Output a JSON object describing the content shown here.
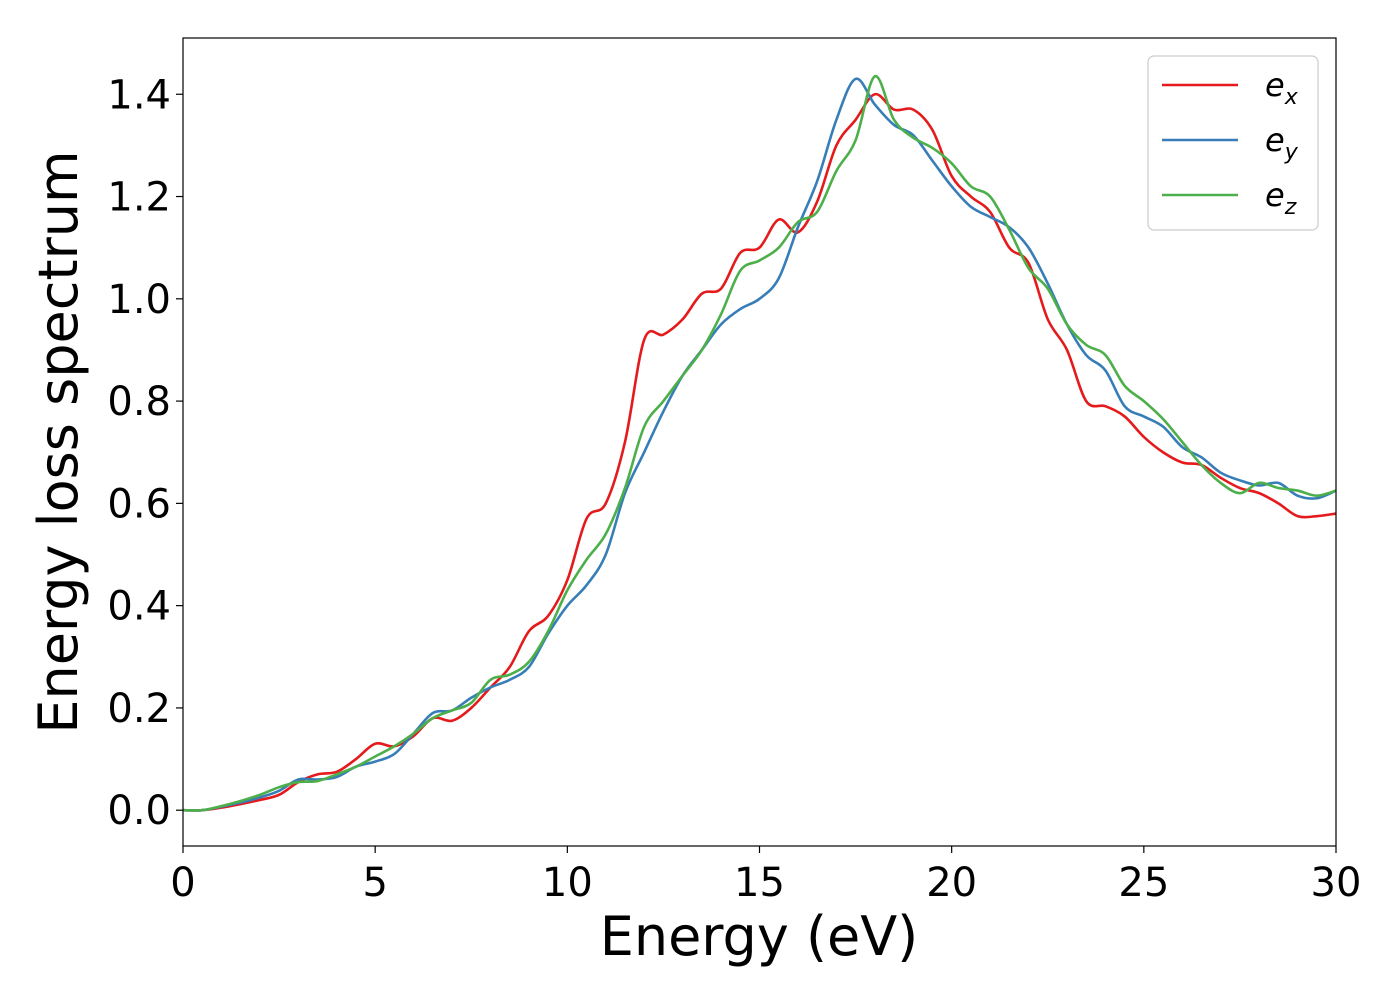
{
  "chart_data": {
    "type": "line",
    "title": "",
    "xlabel": "Energy (eV)",
    "ylabel": "Energy loss spectrum",
    "xlim": [
      0,
      30
    ],
    "ylim": [
      -0.07,
      1.51
    ],
    "xticks": [
      0,
      5,
      10,
      15,
      20,
      25,
      30
    ],
    "xtick_labels": [
      "0",
      "5",
      "10",
      "15",
      "20",
      "25",
      "30"
    ],
    "yticks": [
      0.0,
      0.2,
      0.4,
      0.6,
      0.8,
      1.0,
      1.2,
      1.4
    ],
    "ytick_labels": [
      "0.0",
      "0.2",
      "0.4",
      "0.6",
      "0.8",
      "1.0",
      "1.2",
      "1.4"
    ],
    "grid": false,
    "legend_position": "top-right",
    "x": [
      0,
      0.5,
      1,
      1.5,
      2,
      2.5,
      3,
      3.5,
      4,
      4.5,
      5,
      5.5,
      6,
      6.5,
      7,
      7.5,
      8,
      8.5,
      9,
      9.5,
      10,
      10.5,
      11,
      11.5,
      12,
      12.5,
      13,
      13.5,
      14,
      14.5,
      15,
      15.5,
      16,
      16.5,
      17,
      17.5,
      18,
      18.5,
      19,
      19.5,
      20,
      20.5,
      21,
      21.5,
      22,
      22.5,
      23,
      23.5,
      24,
      24.5,
      25,
      25.5,
      26,
      26.5,
      27,
      27.5,
      28,
      28.5,
      29,
      29.5,
      30
    ],
    "series": [
      {
        "name": "e",
        "subscript": "x",
        "color": "#e41a1c",
        "values": [
          0.0,
          0.0,
          0.005,
          0.012,
          0.02,
          0.03,
          0.055,
          0.07,
          0.075,
          0.1,
          0.13,
          0.125,
          0.145,
          0.18,
          0.175,
          0.2,
          0.24,
          0.28,
          0.35,
          0.38,
          0.45,
          0.57,
          0.6,
          0.72,
          0.92,
          0.93,
          0.96,
          1.01,
          1.02,
          1.09,
          1.1,
          1.155,
          1.13,
          1.19,
          1.3,
          1.35,
          1.4,
          1.37,
          1.37,
          1.33,
          1.24,
          1.2,
          1.17,
          1.1,
          1.07,
          0.96,
          0.9,
          0.8,
          0.79,
          0.77,
          0.73,
          0.7,
          0.68,
          0.675,
          0.65,
          0.63,
          0.62,
          0.6,
          0.575,
          0.575,
          0.58
        ]
      },
      {
        "name": "e",
        "subscript": "y",
        "color": "#377eb8",
        "values": [
          0.0,
          0.0,
          0.007,
          0.015,
          0.025,
          0.038,
          0.06,
          0.06,
          0.065,
          0.085,
          0.095,
          0.11,
          0.15,
          0.19,
          0.195,
          0.22,
          0.24,
          0.255,
          0.28,
          0.345,
          0.4,
          0.44,
          0.5,
          0.62,
          0.7,
          0.78,
          0.85,
          0.9,
          0.95,
          0.98,
          1.0,
          1.04,
          1.14,
          1.23,
          1.35,
          1.43,
          1.38,
          1.34,
          1.32,
          1.27,
          1.22,
          1.18,
          1.16,
          1.14,
          1.1,
          1.03,
          0.95,
          0.89,
          0.86,
          0.79,
          0.77,
          0.75,
          0.71,
          0.69,
          0.66,
          0.645,
          0.635,
          0.64,
          0.615,
          0.61,
          0.625
        ]
      },
      {
        "name": "e",
        "subscript": "z",
        "color": "#4daf4a",
        "values": [
          0.0,
          0.0,
          0.008,
          0.018,
          0.03,
          0.045,
          0.055,
          0.057,
          0.07,
          0.085,
          0.105,
          0.125,
          0.15,
          0.18,
          0.195,
          0.21,
          0.255,
          0.265,
          0.29,
          0.35,
          0.43,
          0.49,
          0.54,
          0.63,
          0.75,
          0.8,
          0.85,
          0.9,
          0.97,
          1.055,
          1.075,
          1.1,
          1.15,
          1.17,
          1.25,
          1.31,
          1.435,
          1.35,
          1.315,
          1.295,
          1.265,
          1.22,
          1.2,
          1.135,
          1.06,
          1.02,
          0.95,
          0.91,
          0.89,
          0.83,
          0.8,
          0.765,
          0.72,
          0.675,
          0.64,
          0.62,
          0.64,
          0.63,
          0.625,
          0.615,
          0.625
        ]
      }
    ]
  }
}
